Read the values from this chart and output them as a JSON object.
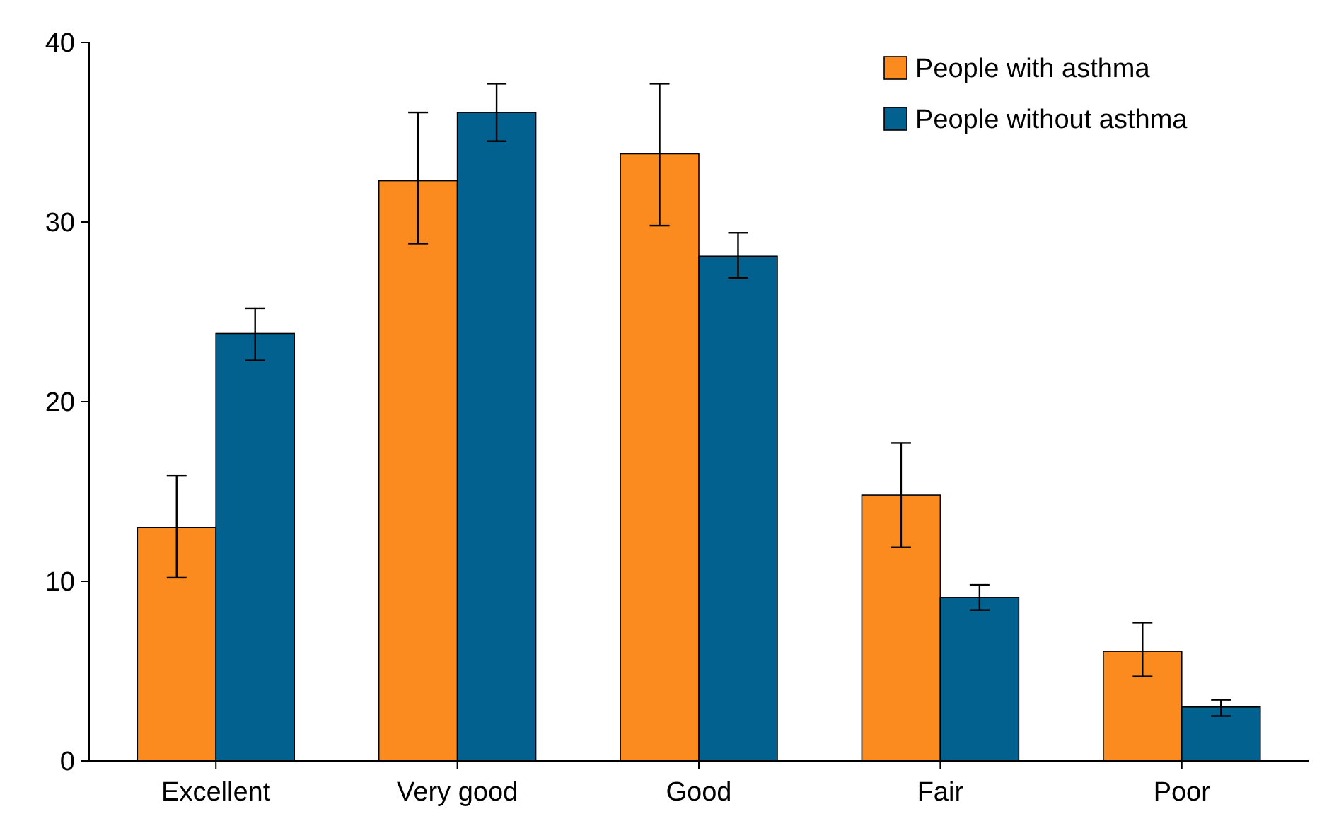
{
  "chart_data": {
    "type": "bar",
    "categories": [
      "Excellent",
      "Very good",
      "Good",
      "Fair",
      "Poor"
    ],
    "series": [
      {
        "name": "People with asthma",
        "color": "#fb8b1e",
        "values": [
          13.0,
          32.3,
          33.8,
          14.8,
          6.1
        ],
        "errors": [
          [
            10.2,
            15.9
          ],
          [
            28.8,
            36.1
          ],
          [
            29.8,
            37.7
          ],
          [
            11.9,
            17.7
          ],
          [
            4.7,
            7.7
          ]
        ]
      },
      {
        "name": "People without asthma",
        "color": "#02618f",
        "values": [
          23.8,
          36.1,
          28.1,
          9.1,
          3.0
        ],
        "errors": [
          [
            22.3,
            25.2
          ],
          [
            34.5,
            37.7
          ],
          [
            26.9,
            29.4
          ],
          [
            8.4,
            9.8
          ],
          [
            2.5,
            3.4
          ]
        ]
      }
    ],
    "ylim": [
      0,
      40
    ],
    "yticks": [
      0,
      10,
      20,
      30,
      40
    ],
    "grid": false,
    "legend": "top right"
  }
}
